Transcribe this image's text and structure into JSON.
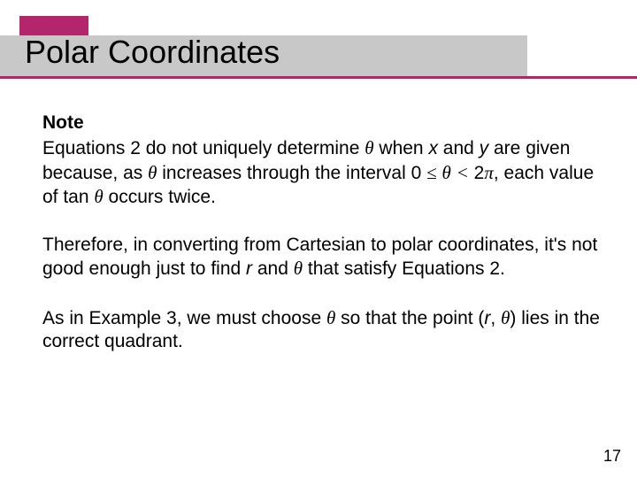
{
  "colors": {
    "accent": "#b3266b",
    "band": "#c8c8c8",
    "underline": "#b3266b",
    "text": "#000000",
    "background": "#ffffff"
  },
  "title": "Polar Coordinates",
  "note_label": "Note",
  "para1_a": "Equations 2 do not uniquely determine ",
  "theta": "θ",
  "para1_b": " when ",
  "x": "x",
  "para1_c": " and ",
  "y": "y",
  "para1_d": " are given because, as ",
  "para1_e": " increases through the interval 0 ",
  "le": "≤",
  "sp": " ",
  "lt": "<",
  "para1_f": " 2",
  "pi": "π",
  "para1_g": ", each value of tan ",
  "para1_h": " occurs twice.",
  "para2_a": "Therefore, in converting from Cartesian to polar coordinates, it's not good enough just to find ",
  "r": "r",
  "para2_b": " and ",
  "para2_c": " that satisfy Equations 2.",
  "para3_a": "As in Example 3, we must choose ",
  "para3_b": " so that the point (",
  "comma_sp": ", ",
  "para3_c": ") lies in the correct quadrant.",
  "page_number": "17"
}
